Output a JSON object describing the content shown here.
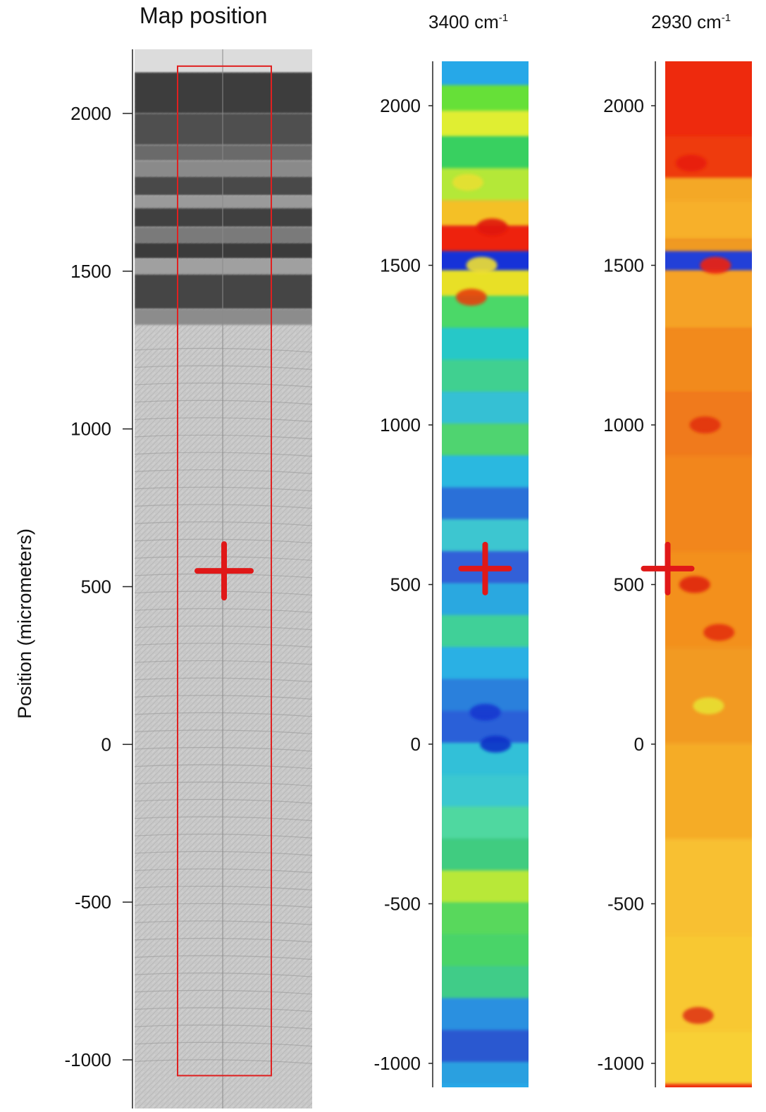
{
  "chart_data": {
    "type": "heatmap",
    "ylabel": "Position (micrometers)",
    "yticks": [
      2000,
      1500,
      1000,
      500,
      0,
      -500,
      -1000
    ],
    "panels": [
      {
        "title": "Map position",
        "kind": "micrograph",
        "map_region": {
          "y_range": [
            -1050,
            2150
          ]
        },
        "marker": {
          "type": "cross",
          "y": 550,
          "color": "#e01818"
        }
      },
      {
        "title": "3400 cm",
        "title_superscript": "-1",
        "kind": "spectral-map",
        "colormap": "blue-cyan-green-yellow-red",
        "y_range": [
          -1060,
          2150
        ],
        "bands": [
          {
            "y_top": 2150,
            "y_bottom": 2060,
            "color": "#28a8e8"
          },
          {
            "y_top": 2060,
            "y_bottom": 1980,
            "color": "#66e038"
          },
          {
            "y_top": 1980,
            "y_bottom": 1900,
            "color": "#e0ee30"
          },
          {
            "y_top": 1900,
            "y_bottom": 1800,
            "color": "#38d060"
          },
          {
            "y_top": 1800,
            "y_bottom": 1700,
            "color": "#b4e838"
          },
          {
            "y_top": 1700,
            "y_bottom": 1620,
            "color": "#f4c028"
          },
          {
            "y_top": 1620,
            "y_bottom": 1540,
            "color": "#ee2010"
          },
          {
            "y_top": 1540,
            "y_bottom": 1480,
            "color": "#1830d8"
          },
          {
            "y_top": 1480,
            "y_bottom": 1400,
            "color": "#e8e028"
          },
          {
            "y_top": 1400,
            "y_bottom": 1300,
            "color": "#4cd868"
          },
          {
            "y_top": 1300,
            "y_bottom": 1200,
            "color": "#28c8c8"
          },
          {
            "y_top": 1200,
            "y_bottom": 1100,
            "color": "#40d090"
          },
          {
            "y_top": 1100,
            "y_bottom": 1000,
            "color": "#36c0d4"
          },
          {
            "y_top": 1000,
            "y_bottom": 900,
            "color": "#50d470"
          },
          {
            "y_top": 900,
            "y_bottom": 800,
            "color": "#2ab8e0"
          },
          {
            "y_top": 800,
            "y_bottom": 700,
            "color": "#2a70d8"
          },
          {
            "y_top": 700,
            "y_bottom": 600,
            "color": "#3cc6d0"
          },
          {
            "y_top": 600,
            "y_bottom": 500,
            "color": "#3060d8"
          },
          {
            "y_top": 500,
            "y_bottom": 400,
            "color": "#2aa8e0"
          },
          {
            "y_top": 400,
            "y_bottom": 300,
            "color": "#40d098"
          },
          {
            "y_top": 300,
            "y_bottom": 200,
            "color": "#2ab0e4"
          },
          {
            "y_top": 200,
            "y_bottom": 100,
            "color": "#2a80dc"
          },
          {
            "y_top": 100,
            "y_bottom": 0,
            "color": "#2a60d8"
          },
          {
            "y_top": 0,
            "y_bottom": -100,
            "color": "#30c0d8"
          },
          {
            "y_top": -100,
            "y_bottom": -200,
            "color": "#3ac8d0"
          },
          {
            "y_top": -200,
            "y_bottom": -300,
            "color": "#50d8a0"
          },
          {
            "y_top": -300,
            "y_bottom": -400,
            "color": "#40cc80"
          },
          {
            "y_top": -400,
            "y_bottom": -500,
            "color": "#b8e838"
          },
          {
            "y_top": -500,
            "y_bottom": -600,
            "color": "#58d85c"
          },
          {
            "y_top": -600,
            "y_bottom": -700,
            "color": "#48d468"
          },
          {
            "y_top": -700,
            "y_bottom": -800,
            "color": "#40cc88"
          },
          {
            "y_top": -800,
            "y_bottom": -900,
            "color": "#2a90e0"
          },
          {
            "y_top": -900,
            "y_bottom": -1000,
            "color": "#2a58d0"
          },
          {
            "y_top": -1000,
            "y_bottom": -1060,
            "color": "#2aa0e0"
          }
        ],
        "spots": [
          {
            "y": 1760,
            "color": "#e8e030"
          },
          {
            "y": 1620,
            "color": "#e01808"
          },
          {
            "y": 1500,
            "color": "#f0e030"
          },
          {
            "y": 1400,
            "color": "#e64010"
          },
          {
            "y": 0,
            "color": "#1030c8"
          },
          {
            "y": 100,
            "color": "#1838d0"
          }
        ],
        "marker": {
          "type": "cross",
          "y": 550,
          "color": "#e01818"
        }
      },
      {
        "title": "2930 cm",
        "title_superscript": "-1",
        "kind": "spectral-map",
        "colormap": "blue-cyan-green-yellow-red",
        "y_range": [
          -1060,
          2150
        ],
        "bands": [
          {
            "y_top": 2150,
            "y_bottom": 1900,
            "color": "#ee2a10"
          },
          {
            "y_top": 1900,
            "y_bottom": 1770,
            "color": "#ee3a10"
          },
          {
            "y_top": 1770,
            "y_bottom": 1700,
            "color": "#f4a828"
          },
          {
            "y_top": 1700,
            "y_bottom": 1580,
            "color": "#f7b02a"
          },
          {
            "y_top": 1580,
            "y_bottom": 1540,
            "color": "#f09a24"
          },
          {
            "y_top": 1540,
            "y_bottom": 1480,
            "color": "#2040d8"
          },
          {
            "y_top": 1480,
            "y_bottom": 1300,
            "color": "#f5a226"
          },
          {
            "y_top": 1300,
            "y_bottom": 1100,
            "color": "#f28a1f"
          },
          {
            "y_top": 1100,
            "y_bottom": 900,
            "color": "#f07a1c"
          },
          {
            "y_top": 900,
            "y_bottom": 600,
            "color": "#f2861e"
          },
          {
            "y_top": 600,
            "y_bottom": 300,
            "color": "#f3901f"
          },
          {
            "y_top": 300,
            "y_bottom": 0,
            "color": "#f29a22"
          },
          {
            "y_top": 0,
            "y_bottom": -300,
            "color": "#f5ac28"
          },
          {
            "y_top": -300,
            "y_bottom": -600,
            "color": "#f8c030"
          },
          {
            "y_top": -600,
            "y_bottom": -900,
            "color": "#f8c832"
          },
          {
            "y_top": -900,
            "y_bottom": -1060,
            "color": "#f8d034"
          }
        ],
        "spots": [
          {
            "y": 1820,
            "color": "#e81e10"
          },
          {
            "y": 1500,
            "color": "#f02010"
          },
          {
            "y": 1000,
            "color": "#e23010"
          },
          {
            "y": 500,
            "color": "#e02810"
          },
          {
            "y": 350,
            "color": "#e43010"
          },
          {
            "y": 120,
            "color": "#e8e030"
          },
          {
            "y": -850,
            "color": "#e03818"
          }
        ],
        "marker": {
          "type": "cross",
          "y": 550,
          "color": "#e01818"
        }
      }
    ]
  }
}
